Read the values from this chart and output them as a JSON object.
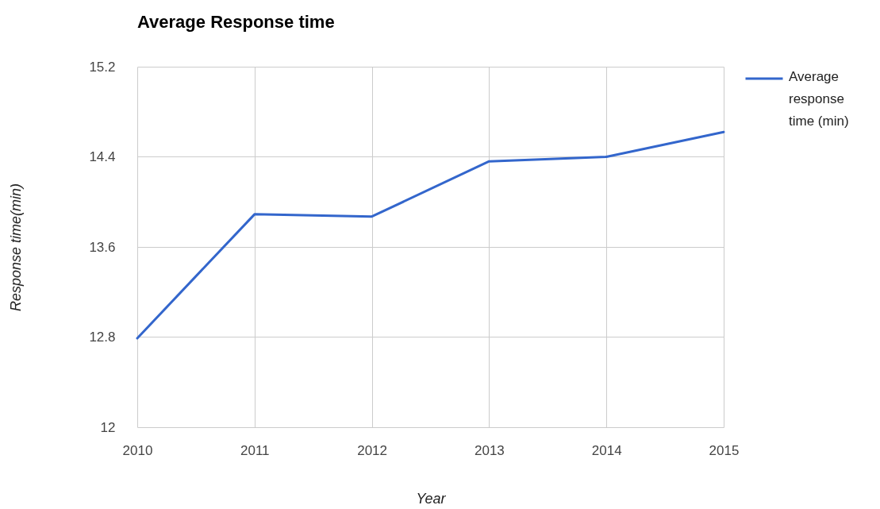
{
  "chart_data": {
    "type": "line",
    "title": "Average Response time",
    "xlabel": "Year",
    "ylabel": "Response time(min)",
    "x": [
      2010,
      2011,
      2012,
      2013,
      2014,
      2015
    ],
    "series": [
      {
        "name": "Average response time (min)",
        "color": "#3366cc",
        "values": [
          12.79,
          13.89,
          13.87,
          14.36,
          14.4,
          14.62
        ]
      }
    ],
    "xlim": [
      2010,
      2015
    ],
    "xticks": [
      2010,
      2011,
      2012,
      2013,
      2014,
      2015
    ],
    "ylim": [
      12,
      15.2
    ],
    "yticks": [
      12,
      12.8,
      13.6,
      14.4,
      15.2
    ],
    "grid": true,
    "legend": "top right",
    "line_style": "solid"
  }
}
